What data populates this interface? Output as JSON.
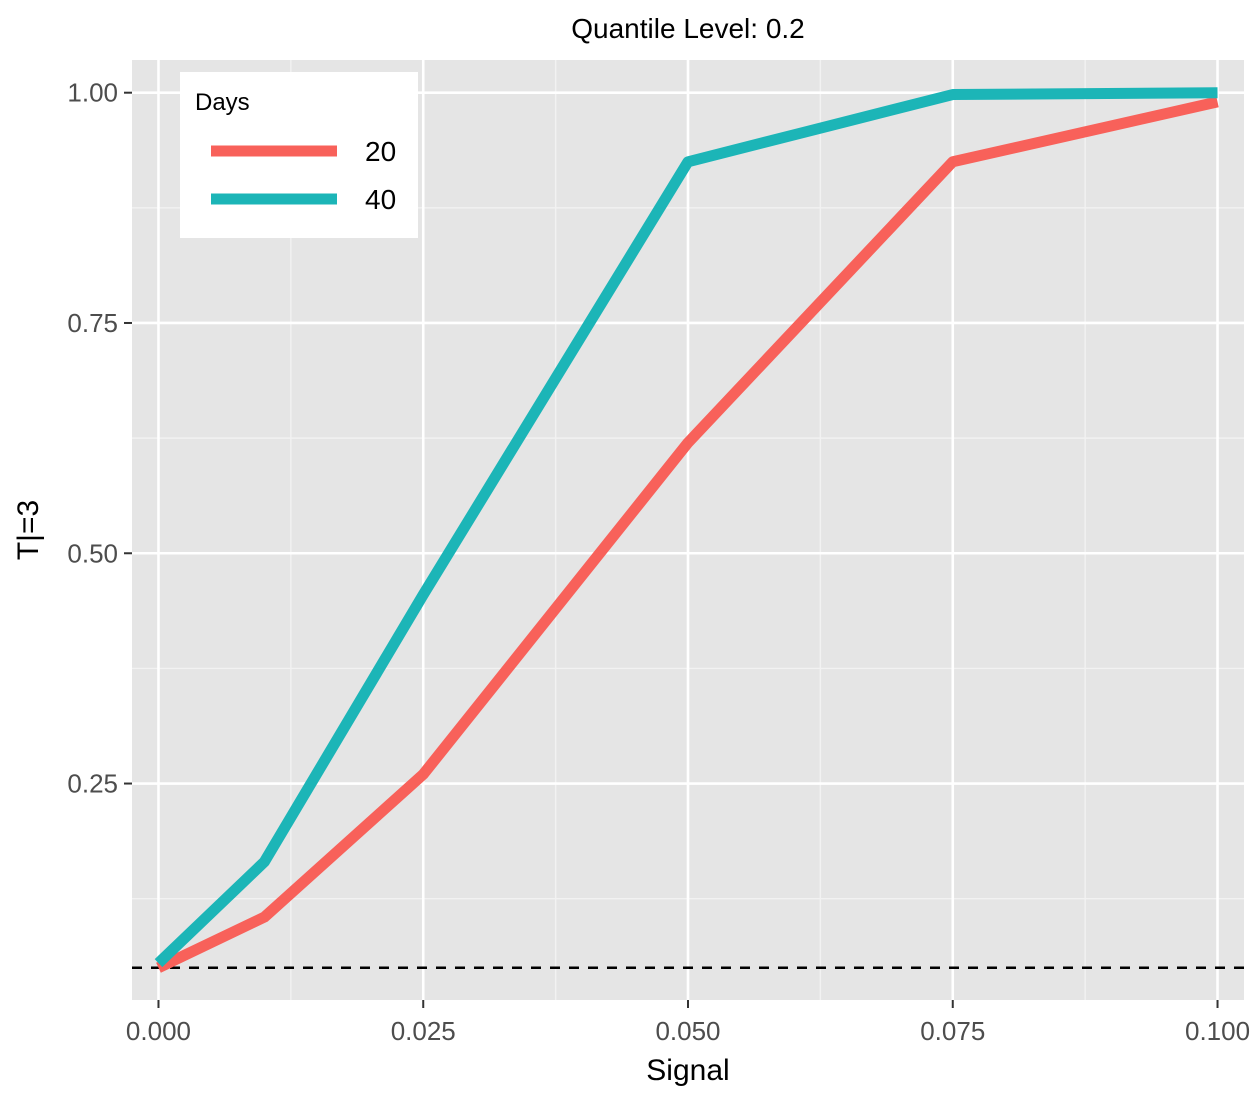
{
  "chart_data": {
    "type": "line",
    "title": "Quantile Level: 0.2",
    "xlabel": "Signal",
    "ylabel": "T|=3",
    "xlim": [
      -0.0025,
      0.1025
    ],
    "ylim": [
      0.015,
      1.0355
    ],
    "x_ticks": [
      0.0,
      0.025,
      0.05,
      0.075,
      0.1
    ],
    "x_tick_labels": [
      "0.000",
      "0.025",
      "0.050",
      "0.075",
      "0.100"
    ],
    "y_ticks": [
      0.25,
      0.5,
      0.75,
      1.0
    ],
    "y_tick_labels": [
      "0.25",
      "0.50",
      "0.75",
      "1.00"
    ],
    "x_minor": [
      0.0125,
      0.0375,
      0.0625,
      0.0875
    ],
    "y_minor": [
      0.125,
      0.375,
      0.625,
      0.875
    ],
    "reference_line": {
      "y": 0.05,
      "style": "dashed",
      "color": "#000000"
    },
    "legend": {
      "title": "Days",
      "position": "top-left"
    },
    "grid": true,
    "background": "#e5e5e5",
    "x": [
      0.0,
      0.01,
      0.025,
      0.05,
      0.075,
      0.1
    ],
    "series": [
      {
        "name": "20",
        "color": "#f8615a",
        "values": [
          0.05,
          0.105,
          0.26,
          0.62,
          0.925,
          0.99
        ]
      },
      {
        "name": "40",
        "color": "#1cb5b7",
        "values": [
          0.055,
          0.165,
          0.455,
          0.925,
          0.998,
          1.0
        ]
      }
    ]
  }
}
